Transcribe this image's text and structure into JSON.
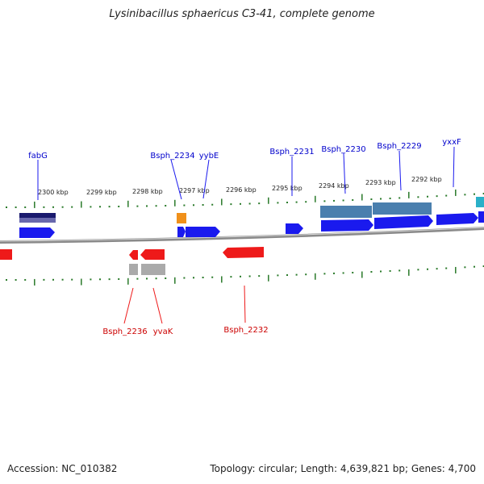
{
  "title": "Lysinibacillus sphaericus C3-41, complete genome",
  "footer": {
    "accession": "Accession: NC_010382",
    "summary": "Topology: circular; Length: 4,639,821 bp; Genes: 4,700"
  },
  "colors": {
    "forward_gene": "#1a1aee",
    "reverse_gene": "#ee1a1a",
    "forward_label": "#0000cc",
    "reverse_label": "#cc0000",
    "tick": "#2a7a2a",
    "backbone": "#8a8a8a",
    "rna_feature": "#f0901a",
    "misc_feature": "#4a7fae",
    "cds_feature": "#1a1a6e",
    "pseudo_feature": "#aaaaaa",
    "edge_feature": "#2ab0c8"
  },
  "scale": {
    "labels": [
      "2300 kbp",
      "2299 kbp",
      "2298 kbp",
      "2297 kbp",
      "2296 kbp",
      "2295 kbp",
      "2294 kbp",
      "2293 kbp",
      "2292 kbp"
    ]
  },
  "genes": {
    "forward_labels": [
      "fabG",
      "Bsph_2234",
      "yybE",
      "Bsph_2231",
      "Bsph_2230",
      "Bsph_2229",
      "yxxF"
    ],
    "reverse_labels": [
      "Bsph_2236",
      "yvaK",
      "Bsph_2232"
    ]
  }
}
